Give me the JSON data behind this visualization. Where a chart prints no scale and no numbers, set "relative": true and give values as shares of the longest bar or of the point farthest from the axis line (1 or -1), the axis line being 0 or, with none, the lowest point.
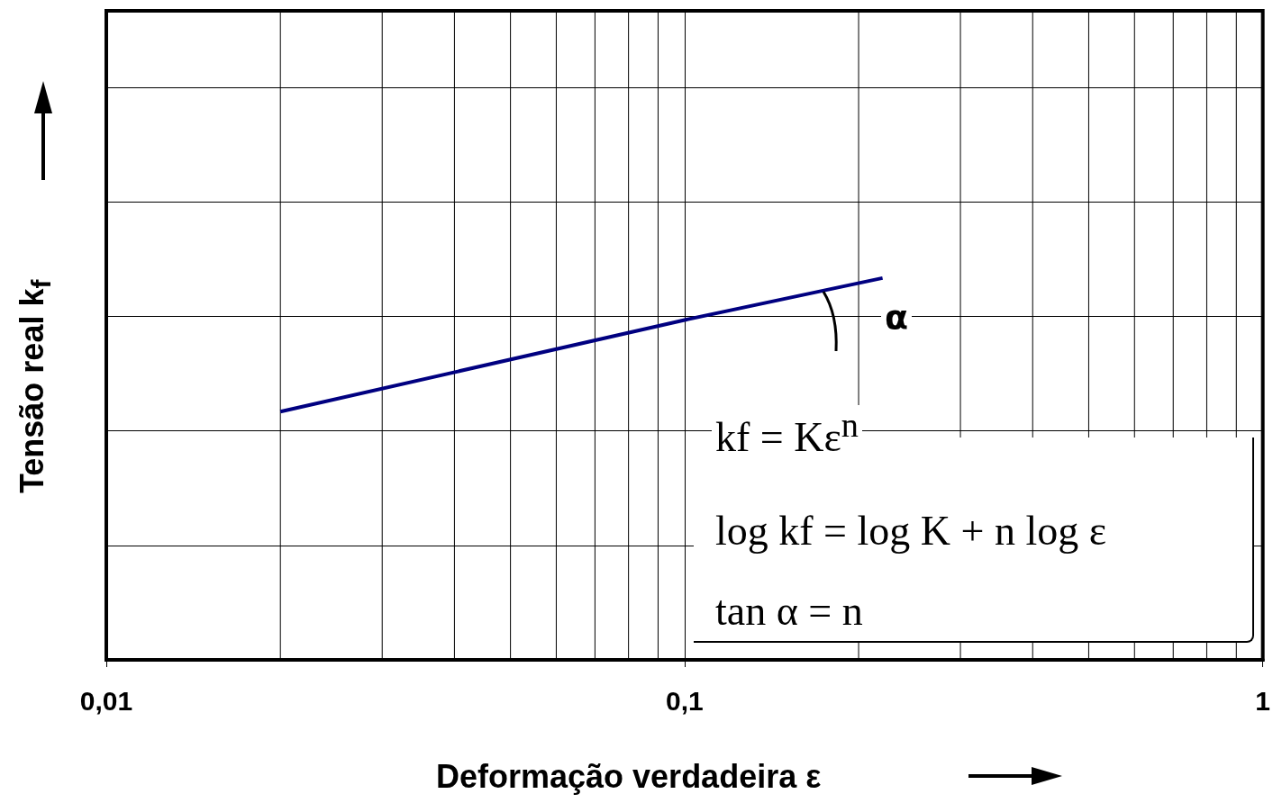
{
  "chart_data": {
    "type": "line",
    "relative": true,
    "xlabel": "Deformação verdadeira ε",
    "ylabel": "Tensão real k$_{f}$",
    "log": "x",
    "xlim": [
      0.01,
      1
    ],
    "xticks": [
      {
        "value": 0.01,
        "label": "0,01"
      },
      {
        "value": 0.02,
        "label": null
      },
      {
        "value": 0.03,
        "label": null
      },
      {
        "value": 0.04,
        "label": null
      },
      {
        "value": 0.05,
        "label": null
      },
      {
        "value": 0.06,
        "label": null
      },
      {
        "value": 0.07,
        "label": null
      },
      {
        "value": 0.08,
        "label": null
      },
      {
        "value": 0.09,
        "label": null
      },
      {
        "value": 0.1,
        "label": "0,1"
      },
      {
        "value": 0.2,
        "label": null
      },
      {
        "value": 0.3,
        "label": null
      },
      {
        "value": 0.4,
        "label": null
      },
      {
        "value": 0.5,
        "label": null
      },
      {
        "value": 0.6,
        "label": null
      },
      {
        "value": 0.7,
        "label": null
      },
      {
        "value": 0.8,
        "label": null
      },
      {
        "value": 0.9,
        "label": null
      },
      {
        "value": 1,
        "label": "1"
      }
    ],
    "grid": true,
    "marker": "none",
    "line_style": "solid",
    "series": [
      {
        "color": "#000080",
        "x": [
          0.02,
          0.1,
          0.22
        ],
        "values": [
          0.65,
          0.89,
          1
        ]
      }
    ],
    "annotations": [
      "α",
      "kf = Kε$^{n}$",
      "log kf = log K + n log ε",
      "tan α = n"
    ]
  }
}
